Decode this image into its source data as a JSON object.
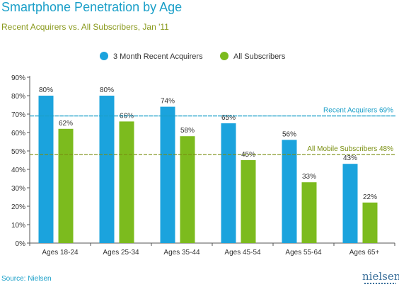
{
  "header": {
    "title": "Smartphone Penetration by Age",
    "subtitle": "Recent Acquirers vs. All Subscribers, Jan '11"
  },
  "footer": {
    "source": "Source: Nielsen",
    "logo_text": "nielsen"
  },
  "colors": {
    "title": "#1a9fc8",
    "subtitle": "#8a9a1e",
    "series_recent": "#1ba3dd",
    "series_all": "#7cbb1e",
    "axis_text": "#333333",
    "recent_line": "#1a9fc8",
    "all_line": "#7a8f10",
    "grid": "#cccccc"
  },
  "chart_data": {
    "type": "bar",
    "categories": [
      "Ages 18-24",
      "Ages 25-34",
      "Ages 35-44",
      "Ages 45-54",
      "Ages 55-64",
      "Ages 65+"
    ],
    "series": [
      {
        "name": "3 Month Recent Acquirers",
        "values": [
          80,
          80,
          74,
          65,
          56,
          43
        ],
        "labels": [
          "80%",
          "80%",
          "74%",
          "65%",
          "56%",
          "43%"
        ],
        "color": "#1ba3dd"
      },
      {
        "name": "All Subscribers",
        "values": [
          62,
          66,
          58,
          45,
          33,
          22
        ],
        "labels": [
          "62%",
          "66%",
          "58%",
          "45%",
          "33%",
          "22%"
        ],
        "color": "#7cbb1e"
      }
    ],
    "ylim": [
      0,
      90
    ],
    "yticks": [
      0,
      10,
      20,
      30,
      40,
      50,
      60,
      70,
      80,
      90
    ],
    "ytick_labels": [
      "0%",
      "10%",
      "20%",
      "30%",
      "40%",
      "50%",
      "60%",
      "70%",
      "80%",
      "90%"
    ],
    "reference_lines": [
      {
        "label": "Recent Acquirers 69%",
        "value": 69,
        "color": "#1a9fc8",
        "style": "dashed"
      },
      {
        "label": "All Mobile Subscribers 48%",
        "value": 48,
        "color": "#7a8f10",
        "style": "dashed"
      }
    ],
    "legend_position": "top-center",
    "grid": false
  }
}
